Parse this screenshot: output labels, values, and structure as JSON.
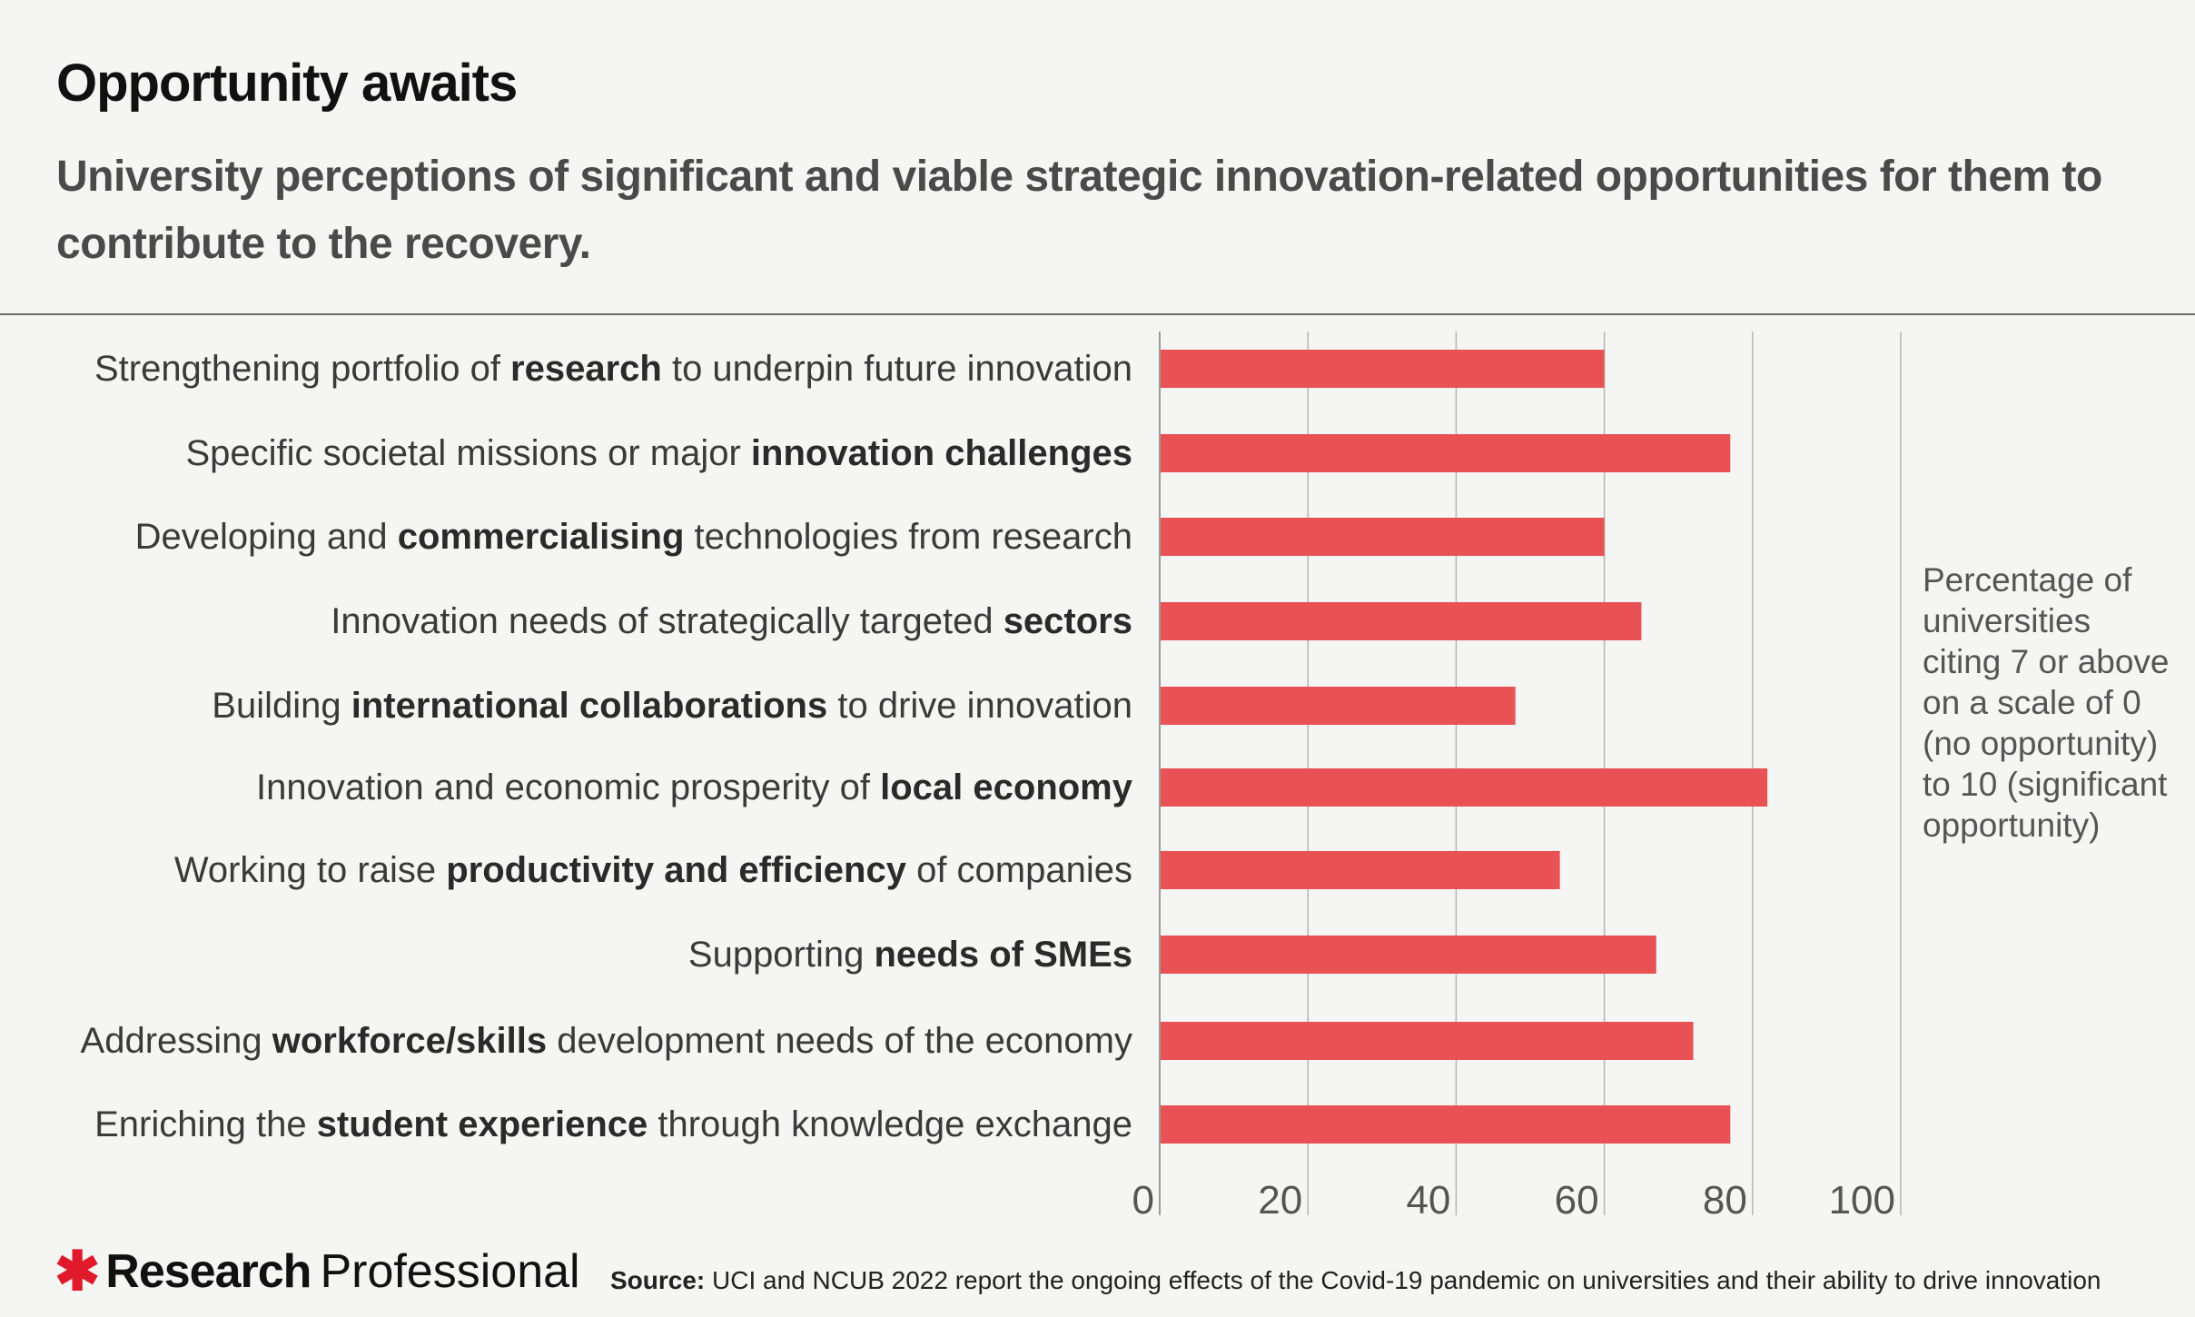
{
  "title": "Opportunity awaits",
  "subtitle": "University perceptions of significant and viable strategic innovation-related opportunities for them to contribute to the recovery.",
  "note": "Percentage of universities citing 7 or above on a scale of 0 (no opportunity) to 10 (significant opportunity)",
  "footer": {
    "logo_bold": "Research",
    "logo_light": "Professional",
    "source_label": "Source:",
    "source_text": "UCI and NCUB 2022 report the ongoing effects of the Covid-19 pandemic on universities and their ability to drive innovation"
  },
  "colors": {
    "bar": "#e85254",
    "grid": "#b5b5b5",
    "logo_accent": "#e01a2b"
  },
  "chart_data": {
    "type": "bar",
    "orientation": "horizontal",
    "categories": [
      "Strengthening portfolio of research to underpin future innovation",
      "Specific societal missions or major innovation challenges",
      "Developing and commercialising technologies from research",
      "Innovation needs of strategically targeted sectors",
      "Building international collaborations to drive innovation",
      "Innovation and economic prosperity of local economy",
      "Working to raise productivity and efficiency of companies",
      "Supporting needs of SMEs",
      "Addressing workforce/skills development needs of the economy",
      "Enriching the student experience through knowledge exchange"
    ],
    "category_parts": [
      [
        [
          "Strengthening portfolio of ",
          false
        ],
        [
          "research",
          true
        ],
        [
          " to underpin future innovation",
          false
        ]
      ],
      [
        [
          "Specific societal missions or major ",
          false
        ],
        [
          "innovation challenges",
          true
        ]
      ],
      [
        [
          "Developing and ",
          false
        ],
        [
          "commercialising",
          true
        ],
        [
          " technologies from research",
          false
        ]
      ],
      [
        [
          "Innovation needs of strategically targeted ",
          false
        ],
        [
          "sectors",
          true
        ]
      ],
      [
        [
          "Building ",
          false
        ],
        [
          "international collaborations",
          true
        ],
        [
          " to drive innovation",
          false
        ]
      ],
      [
        [
          "Innovation and economic prosperity of ",
          false
        ],
        [
          "local economy",
          true
        ]
      ],
      [
        [
          "Working to raise ",
          false
        ],
        [
          "productivity and efficiency",
          true
        ],
        [
          " of companies",
          false
        ]
      ],
      [
        [
          "Supporting ",
          false
        ],
        [
          "needs of SMEs",
          true
        ]
      ],
      [
        [
          "Addressing ",
          false
        ],
        [
          "workforce/skills",
          true
        ],
        [
          " development needs of the economy",
          false
        ]
      ],
      [
        [
          "Enriching the ",
          false
        ],
        [
          "student experience",
          true
        ],
        [
          " through knowledge exchange",
          false
        ]
      ]
    ],
    "values": [
      60,
      77,
      60,
      65,
      48,
      82,
      54,
      67,
      72,
      77
    ],
    "xlim": [
      0,
      100
    ],
    "xticks": [
      "0",
      "20",
      "40",
      "60",
      "80",
      "100"
    ],
    "grid": true,
    "xlabel": "",
    "ylabel": ""
  }
}
